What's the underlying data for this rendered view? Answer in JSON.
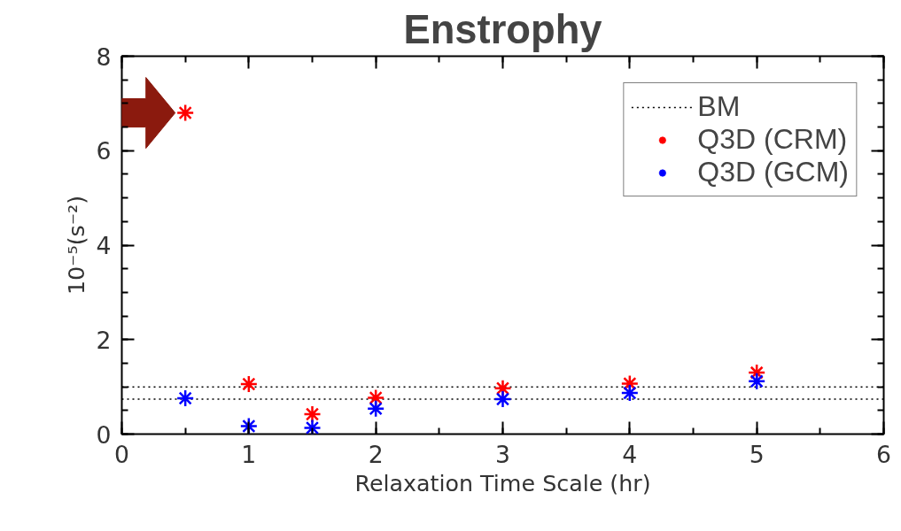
{
  "chart_data": {
    "type": "scatter",
    "title": "Enstrophy",
    "xlabel": "Relaxation Time Scale (hr)",
    "ylabel": "10⁻⁵(s⁻²)",
    "x": [
      0.5,
      1,
      1.5,
      2,
      3,
      4,
      5
    ],
    "series": [
      {
        "name": "Q3D (CRM)",
        "color": "#ff0000",
        "values": [
          6.8,
          1.06,
          0.42,
          0.77,
          0.97,
          1.07,
          1.3
        ]
      },
      {
        "name": "Q3D (GCM)",
        "color": "#0000ff",
        "values": [
          0.76,
          0.17,
          0.13,
          0.54,
          0.74,
          0.87,
          1.12
        ]
      }
    ],
    "ref_lines": [
      {
        "axis": "y",
        "value": 1.0,
        "label": "BM",
        "color": "#000000",
        "line_style": "dotted"
      },
      {
        "axis": "y",
        "value": 0.74,
        "color": "#000000",
        "line_style": "dotted"
      }
    ],
    "xlim": [
      0,
      6
    ],
    "ylim": [
      0,
      8
    ],
    "xticks": [
      0,
      1,
      2,
      3,
      4,
      5,
      6
    ],
    "yticks": [
      0,
      2,
      4,
      6,
      8
    ],
    "marker": "cross",
    "grid": false,
    "legend": "top right"
  }
}
